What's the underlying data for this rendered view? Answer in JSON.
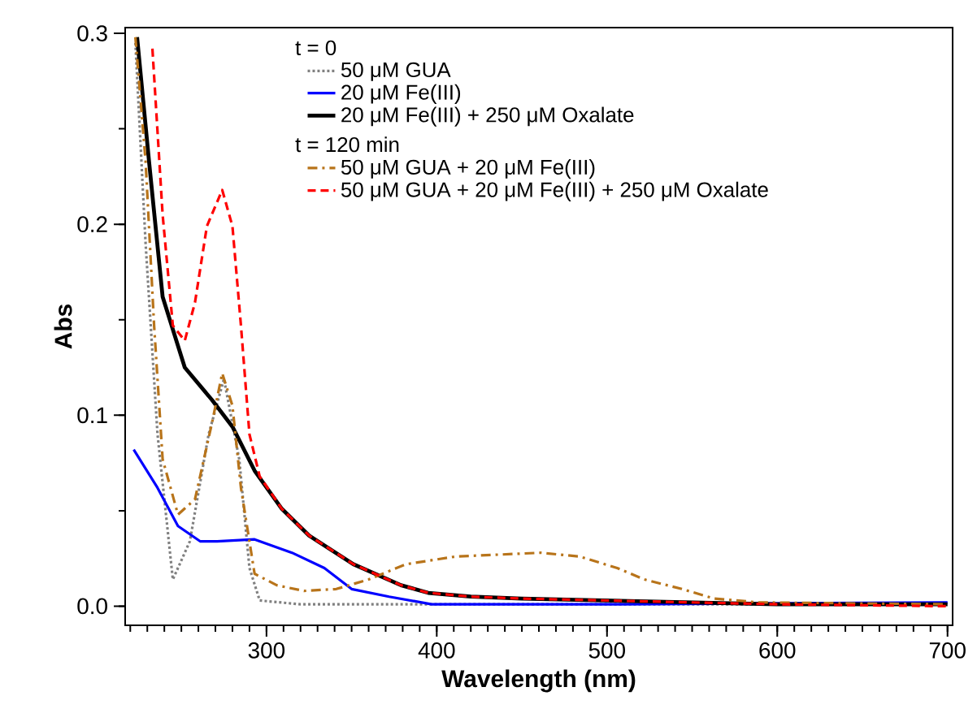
{
  "chart_data": {
    "type": "line",
    "xlabel": "Wavelength (nm)",
    "ylabel": "Abs",
    "xlim": [
      217,
      703
    ],
    "ylim": [
      -0.01,
      0.303
    ],
    "xticks": [
      300,
      400,
      500,
      600,
      700
    ],
    "yticks": [
      {
        "value": 0,
        "label": "0.0"
      },
      {
        "value": 0.1,
        "label": "0.1"
      },
      {
        "value": 0.2,
        "label": "0.2"
      },
      {
        "value": 0.3,
        "label": "0.3"
      }
    ],
    "legend": "top",
    "legend_title": "t = 0",
    "annotations": [
      "t = 120 min"
    ],
    "series": [
      {
        "name": "50 μM GUA",
        "color": "#808080",
        "line_style": "dotted",
        "x": [
          223,
          229,
          236,
          245,
          255,
          266,
          275,
          284,
          290,
          296,
          320,
          400,
          500,
          600,
          700
        ],
        "values": [
          0.295,
          0.19,
          0.09,
          0.014,
          0.034,
          0.09,
          0.119,
          0.077,
          0.02,
          0.003,
          0.001,
          0.001,
          0.001,
          0.001,
          0.001
        ]
      },
      {
        "name": "20 μM Fe(III)",
        "color": "#0000ff",
        "line_style": "solid",
        "x": [
          222,
          236,
          248,
          261,
          271,
          293,
          315,
          334,
          350,
          372,
          397,
          500,
          600,
          700
        ],
        "values": [
          0.082,
          0.062,
          0.042,
          0.034,
          0.034,
          0.035,
          0.028,
          0.02,
          0.009,
          0.005,
          0.001,
          0.001,
          null,
          0.002
        ]
      },
      {
        "name": "20 μM Fe(III) + 250 μM Oxalate",
        "color": "#000000",
        "line_style": "solid",
        "x": [
          224,
          231,
          239,
          252,
          268,
          280,
          293,
          309,
          325,
          351,
          379,
          395,
          420,
          450,
          500,
          600,
          700
        ],
        "values": [
          0.298,
          0.233,
          0.162,
          0.125,
          0.108,
          0.094,
          0.071,
          0.051,
          0.037,
          0.022,
          0.011,
          0.007,
          0.005,
          0.004,
          0.003,
          0.001,
          0.001
        ]
      },
      {
        "name": "50 μM GUA + 20 μM Fe(III)",
        "color": "#b8741a",
        "line_style": "dashdotted",
        "x": [
          223,
          229,
          234,
          239,
          248,
          258,
          268,
          274,
          280,
          285,
          293,
          306,
          322,
          341,
          360,
          382,
          411,
          461,
          484,
          506,
          522,
          544,
          563,
          589,
          700
        ],
        "values": [
          0.298,
          0.233,
          0.147,
          0.077,
          0.048,
          0.056,
          0.096,
          0.122,
          0.105,
          0.062,
          0.017,
          0.011,
          0.008,
          0.009,
          0.014,
          0.022,
          0.026,
          0.028,
          0.026,
          0.02,
          0.014,
          0.009,
          0.004,
          0.002,
          0.001
        ]
      },
      {
        "name": "50 μM GUA + 20 μM Fe(III) + 250 μM Oxalate",
        "color": "#ff0000",
        "line_style": "dashed",
        "x": [
          233,
          239,
          245,
          252,
          258,
          265,
          274,
          280,
          285,
          290,
          296,
          309,
          325,
          351,
          379,
          395,
          420,
          450,
          500,
          600,
          700
        ],
        "values": [
          0.292,
          0.205,
          0.147,
          0.139,
          0.159,
          0.199,
          0.218,
          0.199,
          0.147,
          0.09,
          0.068,
          0.051,
          0.037,
          0.022,
          0.011,
          0.007,
          0.005,
          0.004,
          0.003,
          0.001,
          0.0
        ]
      }
    ]
  }
}
